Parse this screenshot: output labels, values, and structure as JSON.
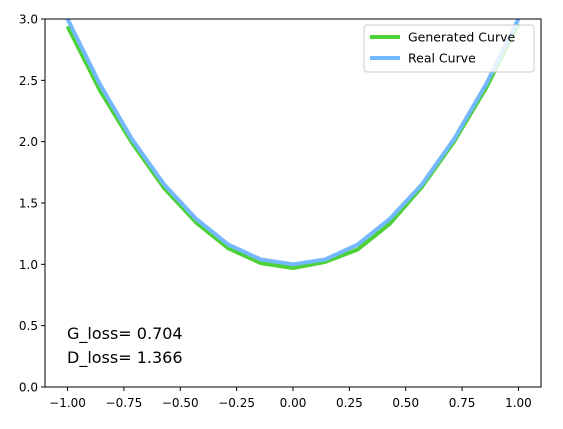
{
  "chart_data": {
    "type": "line",
    "title": "",
    "xlabel": "",
    "ylabel": "",
    "xlim": [
      -1.1,
      1.1
    ],
    "ylim": [
      0.0,
      3.0
    ],
    "x_ticks": [
      -1.0,
      -0.75,
      -0.5,
      -0.25,
      0.0,
      0.25,
      0.5,
      0.75,
      1.0
    ],
    "x_tick_labels": [
      "−1.00",
      "−0.75",
      "−0.50",
      "−0.25",
      "0.00",
      "0.25",
      "0.50",
      "0.75",
      "1.00"
    ],
    "y_ticks": [
      0.0,
      0.5,
      1.0,
      1.5,
      2.0,
      2.5,
      3.0
    ],
    "y_tick_labels": [
      "0.0",
      "0.5",
      "1.0",
      "1.5",
      "2.0",
      "2.5",
      "3.0"
    ],
    "grid": false,
    "legend_position": "top-right",
    "x": [
      -1.0,
      -0.857,
      -0.714,
      -0.571,
      -0.429,
      -0.286,
      -0.143,
      0.0,
      0.143,
      0.286,
      0.429,
      0.571,
      0.714,
      0.857,
      1.0
    ],
    "series": [
      {
        "name": "Generated Curve",
        "color": "#4cd137",
        "values": [
          2.94,
          2.42,
          1.99,
          1.62,
          1.34,
          1.13,
          1.01,
          0.97,
          1.02,
          1.12,
          1.33,
          1.63,
          2.0,
          2.44,
          2.96
        ]
      },
      {
        "name": "Real Curve",
        "color": "#74b9ff",
        "values": [
          3.0,
          2.47,
          2.02,
          1.65,
          1.37,
          1.16,
          1.04,
          1.0,
          1.04,
          1.16,
          1.37,
          1.65,
          2.02,
          2.47,
          3.0
        ]
      }
    ],
    "annotations": [
      "G_loss= 0.704",
      "D_loss= 1.366"
    ]
  }
}
